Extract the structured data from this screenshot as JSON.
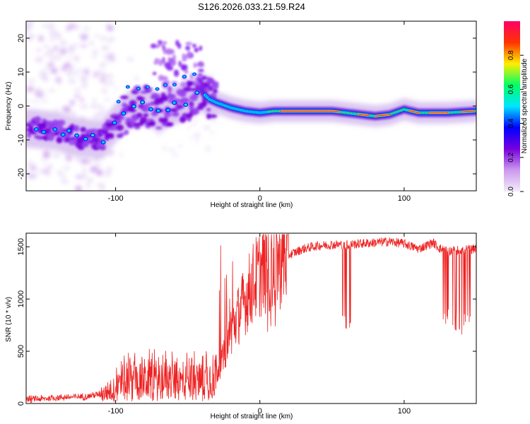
{
  "figure": {
    "title": "S126.2026.033.21.59.R24"
  },
  "chart_data": [
    {
      "type": "heatmap",
      "xlabel": "Height of straight line (km)",
      "ylabel": "Frequency (Hz)",
      "xlim": [
        -162,
        150
      ],
      "ylim": [
        -25,
        25
      ],
      "xticks": [
        -100,
        0,
        100
      ],
      "yticks": [
        -20,
        -10,
        0,
        10,
        20
      ],
      "grid": false,
      "colorbar": {
        "label": "Normalized spectral amplitude",
        "range": [
          0,
          1
        ],
        "ticks": [
          "0.0",
          "0.2",
          "0.4",
          "0.6",
          "0.8"
        ],
        "colors": [
          "#f2ecfa",
          "#cc99ee",
          "#7700dd",
          "#0000ff",
          "#00e5ff",
          "#00ff66",
          "#ffee00",
          "#ff3300",
          "#ff0066"
        ]
      },
      "ridge": {
        "x": [
          -162,
          -150,
          -140,
          -130,
          -120,
          -110,
          -100,
          -90,
          -80,
          -70,
          -60,
          -50,
          -40,
          -35,
          -30,
          -20,
          -10,
          0,
          10,
          30,
          50,
          60,
          70,
          80,
          90,
          100,
          110,
          120,
          130,
          150
        ],
        "y": [
          -6.5,
          -7,
          -7.5,
          -9,
          -9.5,
          -10,
          -5,
          -1,
          0,
          -2,
          0,
          2,
          4,
          2,
          1,
          -0.5,
          -1.5,
          -2,
          -1.5,
          -1.5,
          -1.5,
          -2,
          -2.5,
          -3,
          -2.5,
          -1,
          -2,
          -2,
          -2,
          -1.5
        ]
      }
    },
    {
      "type": "line",
      "xlabel": "Height of straight line (km)",
      "ylabel": "SNR (10 * v/v)",
      "xlim": [
        -162,
        150
      ],
      "ylim": [
        0,
        1630
      ],
      "xticks": [
        -100,
        0,
        100
      ],
      "yticks": [
        0,
        500,
        1000,
        1500
      ],
      "grid": false,
      "series": [
        {
          "color": "#ee2222",
          "x": [
            -162,
            -150,
            -140,
            -130,
            -120,
            -110,
            -100,
            -90,
            -80,
            -70,
            -60,
            -50,
            -40,
            -30,
            -25,
            -20,
            -15,
            -10,
            -5,
            0,
            5,
            10,
            15,
            20,
            30,
            40,
            50,
            60,
            70,
            80,
            90,
            100,
            110,
            120,
            125,
            130,
            140,
            150
          ],
          "y": [
            40,
            45,
            60,
            60,
            70,
            90,
            140,
            200,
            230,
            220,
            210,
            200,
            210,
            280,
            450,
            700,
            850,
            1000,
            1150,
            1250,
            1300,
            1330,
            1380,
            1420,
            1480,
            1510,
            1520,
            1520,
            1530,
            1540,
            1550,
            1530,
            1480,
            1540,
            1480,
            1460,
            1470,
            1480
          ]
        }
      ]
    }
  ]
}
